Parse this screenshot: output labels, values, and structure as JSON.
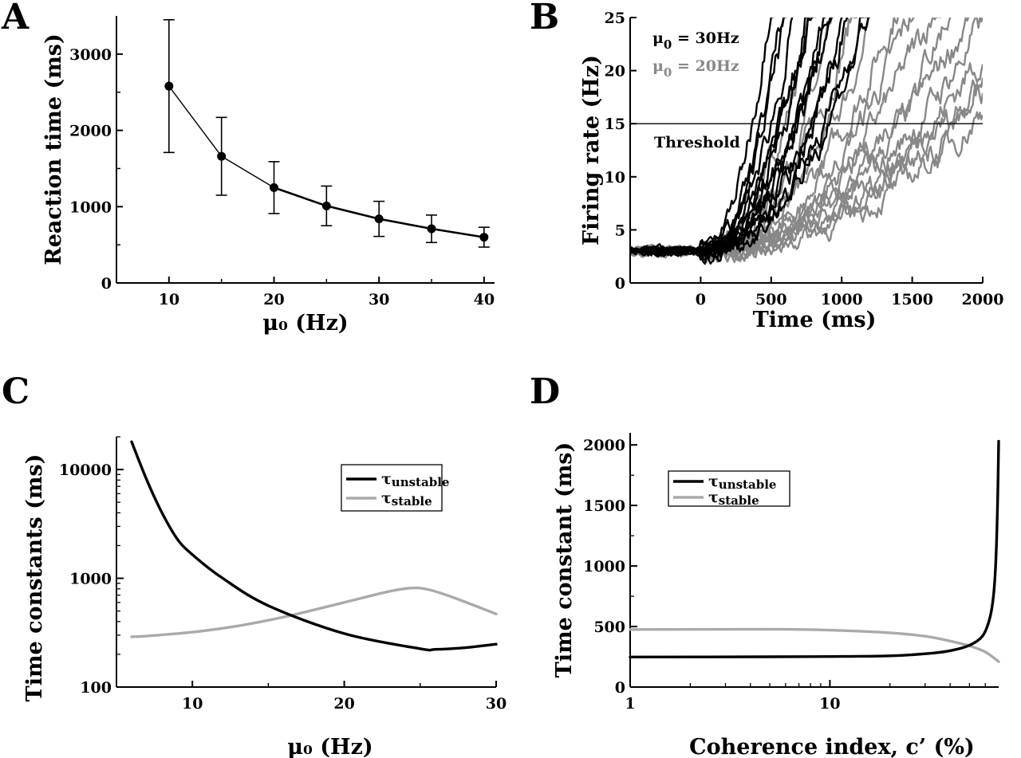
{
  "chart_data": [
    {
      "panel": "A",
      "type": "line",
      "xlabel": "μ₀ (Hz)",
      "ylabel": "Reaction time (ms)",
      "xlim": [
        5,
        41
      ],
      "ylim": [
        0,
        3500
      ],
      "xticks": [
        10,
        20,
        30,
        40
      ],
      "yticks": [
        0,
        1000,
        2000,
        3000
      ],
      "series": [
        {
          "x": [
            10,
            15,
            20,
            25,
            30,
            35,
            40
          ],
          "y": [
            2580,
            1660,
            1250,
            1010,
            840,
            710,
            600
          ],
          "err": [
            870,
            510,
            340,
            260,
            230,
            180,
            130
          ],
          "color": "#000000",
          "markers": true
        }
      ]
    },
    {
      "panel": "B",
      "type": "line",
      "xlabel": "Time (ms)",
      "ylabel": "Firing rate (Hz)",
      "xlim": [
        -500,
        2000
      ],
      "ylim": [
        0,
        25
      ],
      "xticks": [
        0,
        500,
        1000,
        1500,
        2000
      ],
      "yticks": [
        0,
        5,
        10,
        15,
        20,
        25
      ],
      "threshold": 15,
      "threshold_label": "Threshold",
      "legend": [
        {
          "label": "μ",
          "sub": "0",
          "suffix": " = 30Hz",
          "color": "#000000"
        },
        {
          "label": "μ",
          "sub": "0",
          "suffix": " = 20Hz",
          "color": "#888888"
        }
      ],
      "series": [
        {
          "name": "μ0 = 30Hz",
          "color": "#000000",
          "trials": 14,
          "onset": 0,
          "baseline": 3,
          "cross_range": [
            380,
            880
          ],
          "saturate": 25
        },
        {
          "name": "μ0 = 20Hz",
          "color": "#888888",
          "trials": 14,
          "onset": 0,
          "baseline": 3,
          "cross_range": [
            620,
            1920
          ],
          "saturate": 25
        }
      ]
    },
    {
      "panel": "C",
      "type": "line",
      "xlabel": "μ₀ (Hz)",
      "ylabel": "Time constants (ms)",
      "xscale": "linear",
      "yscale": "log",
      "xlim": [
        5,
        30
      ],
      "ylim": [
        100,
        20000
      ],
      "xticks": [
        10,
        20,
        30
      ],
      "yticks": [
        100,
        1000,
        10000
      ],
      "legend": [
        {
          "label": "τ",
          "sub": "unstable",
          "color": "#000000"
        },
        {
          "label": "τ",
          "sub": "stable",
          "color": "#aaaaaa"
        }
      ],
      "series": [
        {
          "name": "τunstable",
          "color": "#000000",
          "x": [
            6,
            7,
            8,
            9,
            10,
            12,
            15,
            20,
            25,
            26,
            28,
            30
          ],
          "y": [
            18000,
            8000,
            4000,
            2300,
            1650,
            1000,
            560,
            310,
            225,
            222,
            230,
            248
          ]
        },
        {
          "name": "τstable",
          "color": "#aaaaaa",
          "x": [
            6,
            7,
            10,
            13,
            16,
            20,
            23,
            24.5,
            25.5,
            27,
            30
          ],
          "y": [
            290,
            295,
            320,
            365,
            440,
            600,
            760,
            815,
            790,
            680,
            470
          ]
        }
      ]
    },
    {
      "panel": "D",
      "type": "line",
      "xlabel": "Coherence index, c’ (%)",
      "ylabel": "Time constant (ms)",
      "xscale": "log",
      "yscale": "linear",
      "xlim": [
        1,
        70
      ],
      "ylim": [
        0,
        2100
      ],
      "xticks": [
        1,
        10
      ],
      "yticks": [
        0,
        500,
        1000,
        1500,
        2000
      ],
      "legend": [
        {
          "label": "τ",
          "sub": "unstable",
          "color": "#000000"
        },
        {
          "label": "τ",
          "sub": "stable",
          "color": "#aaaaaa"
        }
      ],
      "series": [
        {
          "name": "τunstable",
          "color": "#000000",
          "x": [
            1,
            5,
            10,
            20,
            30,
            40,
            50,
            58,
            63,
            66,
            68,
            69.3,
            70
          ],
          "y": [
            248,
            250,
            252,
            258,
            275,
            300,
            345,
            420,
            560,
            760,
            1100,
            1600,
            2030
          ]
        },
        {
          "name": "τstable",
          "color": "#aaaaaa",
          "x": [
            1,
            5,
            10,
            20,
            30,
            40,
            50,
            60,
            70
          ],
          "y": [
            475,
            478,
            470,
            448,
            420,
            380,
            340,
            290,
            210
          ]
        }
      ]
    }
  ]
}
